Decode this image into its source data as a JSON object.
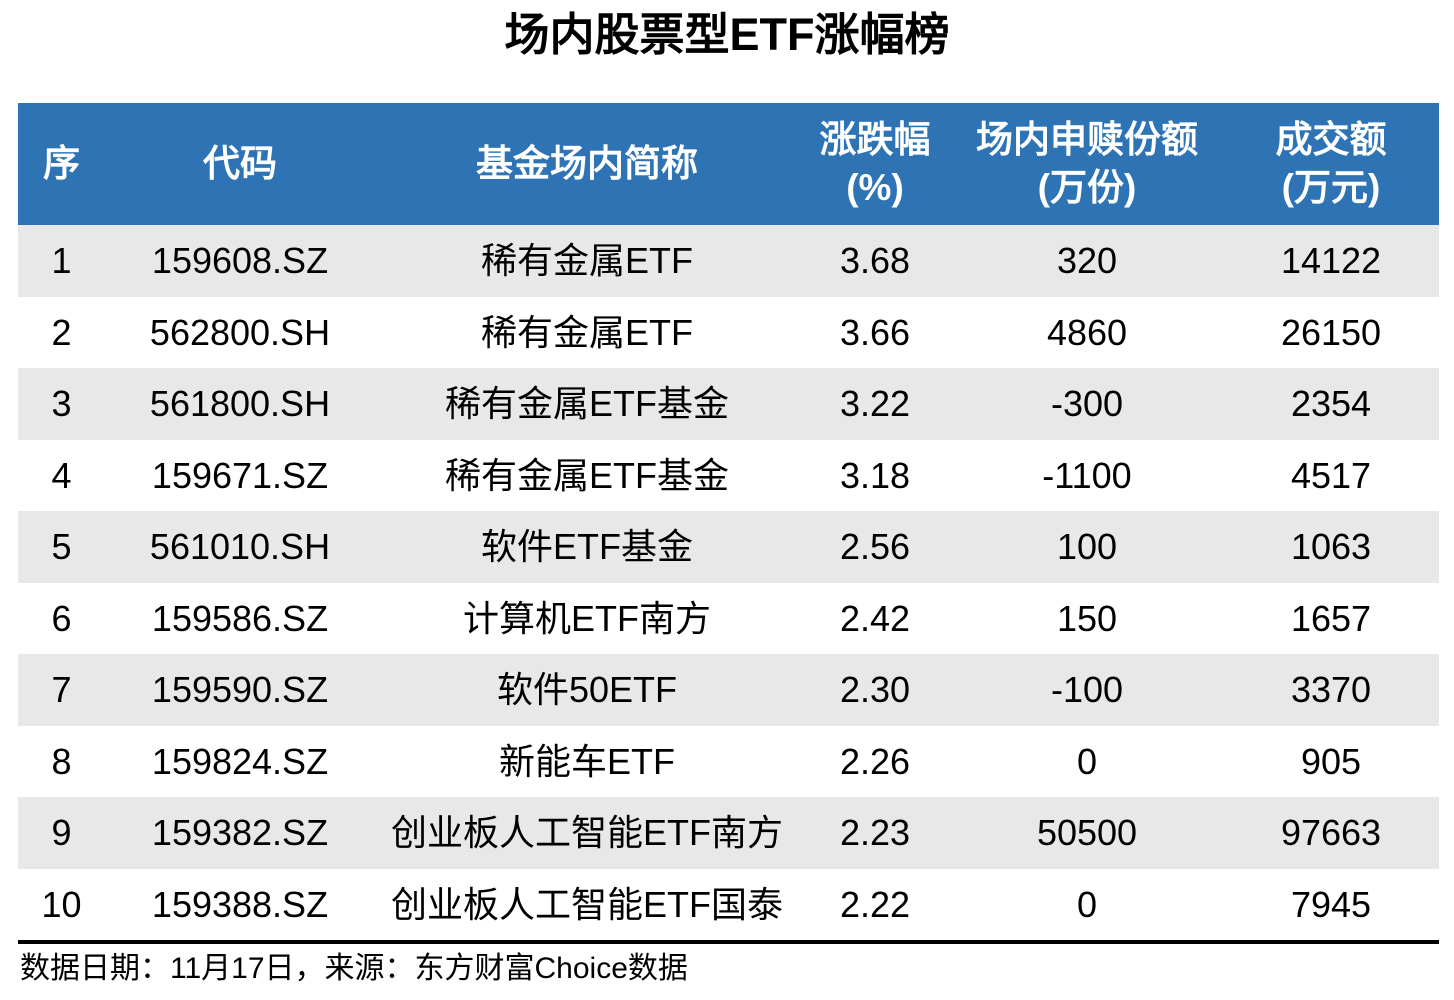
{
  "title": "场内股票型ETF涨幅榜",
  "colors": {
    "header_bg": "#2E74B5",
    "header_text": "#FFFFFF",
    "stripe_bg": "#E8E8E8",
    "row_bg": "#FFFFFF",
    "text": "#000000"
  },
  "table": {
    "headers": [
      {
        "line1": "序",
        "line2": ""
      },
      {
        "line1": "代码",
        "line2": ""
      },
      {
        "line1": "基金场内简称",
        "line2": ""
      },
      {
        "line1": "涨跌幅",
        "line2": "(%)"
      },
      {
        "line1": "场内申赎份额",
        "line2": "(万份)"
      },
      {
        "line1": "成交额",
        "line2": "(万元)"
      }
    ],
    "rows": [
      [
        "1",
        "159608.SZ",
        "稀有金属ETF",
        "3.68",
        "320",
        "14122"
      ],
      [
        "2",
        "562800.SH",
        "稀有金属ETF",
        "3.66",
        "4860",
        "26150"
      ],
      [
        "3",
        "561800.SH",
        "稀有金属ETF基金",
        "3.22",
        "-300",
        "2354"
      ],
      [
        "4",
        "159671.SZ",
        "稀有金属ETF基金",
        "3.18",
        "-1100",
        "4517"
      ],
      [
        "5",
        "561010.SH",
        "软件ETF基金",
        "2.56",
        "100",
        "1063"
      ],
      [
        "6",
        "159586.SZ",
        "计算机ETF南方",
        "2.42",
        "150",
        "1657"
      ],
      [
        "7",
        "159590.SZ",
        "软件50ETF",
        "2.30",
        "-100",
        "3370"
      ],
      [
        "8",
        "159824.SZ",
        "新能车ETF",
        "2.26",
        "0",
        "905"
      ],
      [
        "9",
        "159382.SZ",
        "创业板人工智能ETF南方",
        "2.23",
        "50500",
        "97663"
      ],
      [
        "10",
        "159388.SZ",
        "创业板人工智能ETF国泰",
        "2.22",
        "0",
        "7945"
      ]
    ]
  },
  "footer": {
    "note": "数据日期：11月17日，来源：东方财富Choice数据"
  },
  "chart_data": {
    "type": "table",
    "title": "场内股票型ETF涨幅榜",
    "columns": [
      "序",
      "代码",
      "基金场内简称",
      "涨跌幅(%)",
      "场内申赎份额(万份)",
      "成交额(万元)"
    ],
    "rows": [
      [
        1,
        "159608.SZ",
        "稀有金属ETF",
        3.68,
        320,
        14122
      ],
      [
        2,
        "562800.SH",
        "稀有金属ETF",
        3.66,
        4860,
        26150
      ],
      [
        3,
        "561800.SH",
        "稀有金属ETF基金",
        3.22,
        -300,
        2354
      ],
      [
        4,
        "159671.SZ",
        "稀有金属ETF基金",
        3.18,
        -1100,
        4517
      ],
      [
        5,
        "561010.SH",
        "软件ETF基金",
        2.56,
        100,
        1063
      ],
      [
        6,
        "159586.SZ",
        "计算机ETF南方",
        2.42,
        150,
        1657
      ],
      [
        7,
        "159590.SZ",
        "软件50ETF",
        2.3,
        -100,
        3370
      ],
      [
        8,
        "159824.SZ",
        "新能车ETF",
        2.26,
        0,
        905
      ],
      [
        9,
        "159382.SZ",
        "创业板人工智能ETF南方",
        2.23,
        50500,
        97663
      ],
      [
        10,
        "159388.SZ",
        "创业板人工智能ETF国泰",
        2.22,
        0,
        7945
      ]
    ],
    "source_note": "数据日期：11月17日，来源：东方财富Choice数据",
    "layout": {
      "striped_rows": "odd",
      "header_style": "blue-banner",
      "grid": false
    }
  }
}
